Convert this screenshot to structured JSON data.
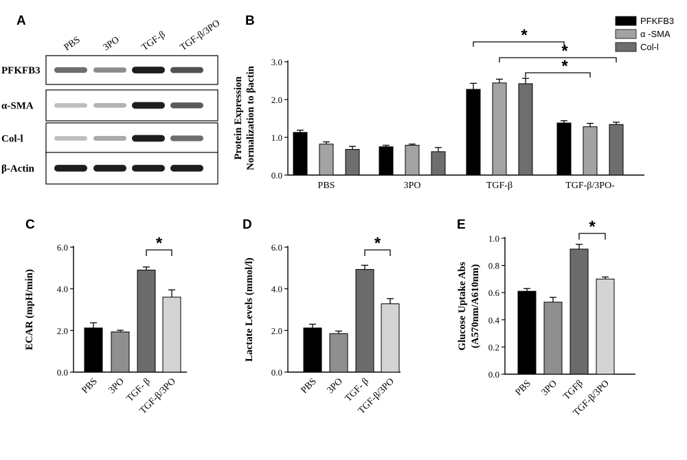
{
  "panel_letters": {
    "a": "A",
    "b": "B",
    "c": "C",
    "d": "D",
    "e": "E"
  },
  "blot": {
    "lanes": [
      "PBS",
      "3PO",
      "TGF-β",
      "TGF-β/3PO"
    ],
    "rows": [
      {
        "label": "PFKFB3",
        "intensity": [
          0.55,
          0.4,
          0.95,
          0.7
        ]
      },
      {
        "label": "α-SMA",
        "intensity": [
          0.15,
          0.2,
          0.95,
          0.65
        ]
      },
      {
        "label": "Col-l",
        "intensity": [
          0.15,
          0.25,
          0.95,
          0.55
        ]
      },
      {
        "label": "β-Actin",
        "intensity": [
          0.95,
          0.95,
          0.95,
          0.95
        ]
      }
    ],
    "colors": {
      "band": "#141414",
      "border": "#000000"
    }
  },
  "chart_data": [
    {
      "panel": "B",
      "type": "bar",
      "title": "",
      "ylabel_line1": "Protein Expression",
      "ylabel_line2": "Normalization to  βactin",
      "xlabel": "",
      "ylim": [
        0,
        3.0
      ],
      "yticks": [
        "0.0",
        "1.0",
        "2.0",
        "3.0"
      ],
      "categories": [
        "PBS",
        "3PO",
        "TGF-β",
        "TGF-β/3PO-"
      ],
      "series": [
        {
          "name": "PFKFB3",
          "color": "#000000",
          "values": [
            1.13,
            0.75,
            2.27,
            1.38
          ],
          "errors": [
            0.06,
            0.04,
            0.16,
            0.06
          ]
        },
        {
          "name": "α -SMA",
          "color": "#a3a3a3",
          "values": [
            0.82,
            0.79,
            2.44,
            1.28
          ],
          "errors": [
            0.06,
            0.03,
            0.1,
            0.09
          ]
        },
        {
          "name": "Col-l",
          "color": "#6e6e6e",
          "values": [
            0.68,
            0.62,
            2.42,
            1.34
          ],
          "errors": [
            0.08,
            0.11,
            0.14,
            0.06
          ]
        }
      ],
      "significance": [
        {
          "from": [
            2,
            0
          ],
          "to": [
            3,
            0
          ],
          "label": "*"
        },
        {
          "from": [
            2,
            1
          ],
          "to": [
            3,
            2
          ],
          "label": "*"
        },
        {
          "from": [
            2,
            2
          ],
          "to": [
            3,
            1
          ],
          "label": "*"
        }
      ],
      "legend": "top-right"
    },
    {
      "panel": "C",
      "type": "bar",
      "title": "",
      "ylabel": "ECAR (mpH/min)",
      "ylim": [
        0,
        6.0
      ],
      "yticks": [
        "0.0",
        "2.0",
        "4.0",
        "6.0"
      ],
      "categories": [
        "PBS",
        "3PO",
        "TGF- β",
        "TGF-β/3PO"
      ],
      "values": [
        2.12,
        1.93,
        4.9,
        3.6
      ],
      "errors": [
        0.25,
        0.08,
        0.15,
        0.35
      ],
      "colors": [
        "#000000",
        "#8f8f8f",
        "#6b6b6b",
        "#d4d4d4"
      ],
      "significance": [
        {
          "from": 2,
          "to": 3,
          "label": "*"
        }
      ]
    },
    {
      "panel": "D",
      "type": "bar",
      "title": "",
      "ylabel": "Lactate Levels (mmol/l)",
      "ylim": [
        0,
        6.0
      ],
      "yticks": [
        "0.0",
        "2.0",
        "4.0",
        "6.0"
      ],
      "categories": [
        "PBS",
        "3PO",
        "TGF- β",
        "TGF-β/3PO"
      ],
      "values": [
        2.12,
        1.85,
        4.93,
        3.28
      ],
      "errors": [
        0.18,
        0.12,
        0.2,
        0.25
      ],
      "colors": [
        "#000000",
        "#8f8f8f",
        "#6b6b6b",
        "#d4d4d4"
      ],
      "significance": [
        {
          "from": 2,
          "to": 3,
          "label": "*"
        }
      ]
    },
    {
      "panel": "E",
      "type": "bar",
      "title": "",
      "ylabel_line1": "Glucose Uptake Abs",
      "ylabel_line2": "(A570nm/A610nm)",
      "ylim": [
        0,
        1.0
      ],
      "yticks": [
        "0.0",
        "0.2",
        "0.4",
        "0.6",
        "0.8",
        "1.0"
      ],
      "categories": [
        "PBS",
        "3PO",
        "TGFβ",
        "TGF-β/3PO"
      ],
      "values": [
        0.61,
        0.53,
        0.92,
        0.7
      ],
      "errors": [
        0.02,
        0.035,
        0.035,
        0.015
      ],
      "colors": [
        "#000000",
        "#8f8f8f",
        "#6b6b6b",
        "#d4d4d4"
      ],
      "significance": [
        {
          "from": 2,
          "to": 3,
          "label": "*"
        }
      ]
    }
  ]
}
